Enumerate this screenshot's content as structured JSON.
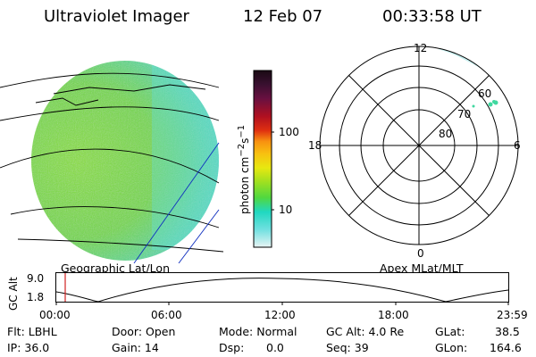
{
  "header": {
    "instrument": "Ultraviolet Imager",
    "date": "12 Feb 07",
    "time": "00:33:58 UT"
  },
  "map": {
    "label_left": "Geographic Lat/Lon",
    "label_right": "Apex MLat/MLT"
  },
  "colorbar": {
    "unit_base": "photon cm",
    "unit_exp1": "−2",
    "unit_mid": "s",
    "unit_exp2": "−1",
    "ticks": [
      "100",
      "10"
    ],
    "colors": [
      "#1a0a14",
      "#3a1030",
      "#5a1040",
      "#801030",
      "#b01020",
      "#d02010",
      "#f05010",
      "#f89010",
      "#f8c010",
      "#e8e810",
      "#b8e810",
      "#80e020",
      "#40d860",
      "#20d8c0",
      "#60e0e0",
      "#b0ecec",
      "#e0f4f4"
    ]
  },
  "polar": {
    "mlt_labels": [
      "12",
      "18",
      "6",
      "0"
    ],
    "lat_labels": [
      "60",
      "70",
      "80"
    ],
    "dot_color": "#40d8a0"
  },
  "timeline": {
    "axis_label": "GC Alt",
    "y_top": "9.0",
    "y_bottom": "1.8",
    "x_labels": [
      "00:00",
      "06:00",
      "12:00",
      "18:00",
      "23:59"
    ],
    "marker_color": "#d02020"
  },
  "info": {
    "filter": "Flt: LBHL",
    "door": "Door: Open",
    "mode": "Mode: Normal",
    "gc_alt": "GC Alt: 4.0 Re",
    "glat_label": "GLat:",
    "glat_value": "38.5",
    "ip": "IP: 36.0",
    "gain": "Gain: 14",
    "dsp_label": "Dsp:",
    "dsp_value": "0.0",
    "seq": "Seq: 39",
    "glon_label": "GLon:",
    "glon_value": "164.6"
  }
}
